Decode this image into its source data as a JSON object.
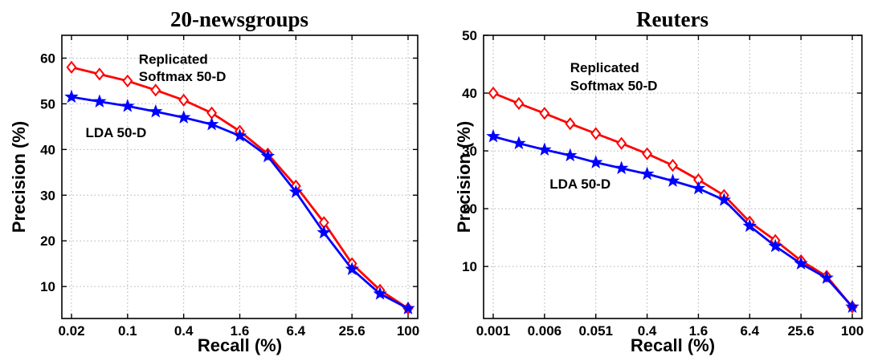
{
  "chart_data": [
    {
      "type": "line",
      "title": "20-newsgroups",
      "xlabel": "Recall (%)",
      "ylabel": "Precision (%)",
      "x_tick_labels": [
        "0.02",
        "0.1",
        "0.4",
        "1.6",
        "6.4",
        "25.6",
        "100"
      ],
      "y_ticks": [
        10,
        20,
        30,
        40,
        50,
        60
      ],
      "ylim": [
        3,
        65
      ],
      "grid": true,
      "series": [
        {
          "color": "#ff0000",
          "marker": "diamond",
          "values": [
            58.0,
            56.5,
            55.0,
            53.0,
            50.8,
            48.0,
            44.0,
            39.0,
            32.0,
            24.0,
            15.0,
            9.2,
            5.2
          ]
        },
        {
          "color": "#0000ff",
          "marker": "star",
          "values": [
            51.5,
            50.5,
            49.5,
            48.3,
            47.0,
            45.5,
            43.0,
            38.5,
            30.7,
            21.8,
            13.8,
            8.4,
            5.2
          ]
        }
      ],
      "annotations": [
        {
          "text": "Replicated",
          "x_index": 2.4,
          "y": 58.8
        },
        {
          "text": "Softmax 50-D",
          "x_index": 2.4,
          "y": 55.0
        },
        {
          "text": "LDA 50-D",
          "x_index": 0.5,
          "y": 42.7
        }
      ]
    },
    {
      "type": "line",
      "title": "Reuters",
      "xlabel": "Recall (%)",
      "ylabel": "Precision (%)",
      "x_tick_labels": [
        "0.001",
        "0.006",
        "0.051",
        "0.4",
        "1.6",
        "6.4",
        "25.6",
        "100"
      ],
      "x_tick_indices": [
        0,
        2,
        4,
        6,
        8,
        10,
        12,
        14
      ],
      "y_ticks": [
        10,
        20,
        30,
        40,
        50
      ],
      "ylim": [
        1,
        50
      ],
      "grid": true,
      "series": [
        {
          "color": "#ff0000",
          "marker": "diamond",
          "values": [
            40.0,
            38.2,
            36.5,
            34.7,
            33.0,
            31.3,
            29.5,
            27.5,
            25.0,
            22.3,
            17.7,
            14.5,
            11.0,
            8.3,
            3.0
          ]
        },
        {
          "color": "#0000ff",
          "marker": "star",
          "values": [
            32.5,
            31.3,
            30.2,
            29.2,
            28.0,
            27.0,
            26.0,
            24.8,
            23.5,
            21.5,
            17.0,
            13.5,
            10.5,
            8.0,
            3.0
          ]
        }
      ],
      "annotations": [
        {
          "text": "Replicated",
          "x_index": 3.0,
          "y": 43.6
        },
        {
          "text": "Softmax 50-D",
          "x_index": 3.0,
          "y": 40.5
        },
        {
          "text": "LDA 50-D",
          "x_index": 2.2,
          "y": 23.5
        }
      ]
    }
  ]
}
